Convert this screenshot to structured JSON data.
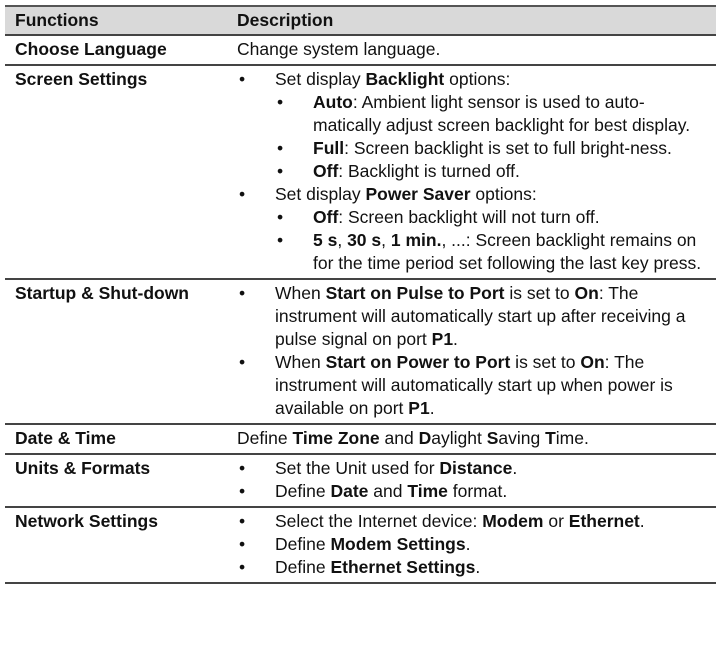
{
  "table": {
    "headers": [
      "Functions",
      "Description"
    ],
    "rows": [
      {
        "function": "Choose Language",
        "plain": [
          {
            "t": "Change system language."
          }
        ]
      },
      {
        "function": "Screen Settings",
        "items": [
          {
            "segs": [
              {
                "t": "Set display "
              },
              {
                "t": "Backlight",
                "b": true
              },
              {
                "t": " options:"
              }
            ],
            "sub": [
              [
                {
                  "t": "Auto",
                  "b": true
                },
                {
                  "t": ": Ambient light sensor is used to auto-matically adjust screen backlight for best display."
                }
              ],
              [
                {
                  "t": "Full",
                  "b": true
                },
                {
                  "t": ": Screen backlight is set to full bright-ness."
                }
              ],
              [
                {
                  "t": "Off",
                  "b": true
                },
                {
                  "t": ": Backlight is turned off."
                }
              ]
            ]
          },
          {
            "segs": [
              {
                "t": "Set display "
              },
              {
                "t": "Power Saver",
                "b": true
              },
              {
                "t": " options:"
              }
            ],
            "sub": [
              [
                {
                  "t": "Off",
                  "b": true
                },
                {
                  "t": ": Screen backlight will not turn off."
                }
              ],
              [
                {
                  "t": "5 s",
                  "b": true
                },
                {
                  "t": ", "
                },
                {
                  "t": "30 s",
                  "b": true
                },
                {
                  "t": ", "
                },
                {
                  "t": "1 min.",
                  "b": true
                },
                {
                  "t": ", ...: Screen backlight remains on for the time period set following the last key press."
                }
              ]
            ]
          }
        ]
      },
      {
        "function": "Startup & Shut-down",
        "items": [
          {
            "segs": [
              {
                "t": "When "
              },
              {
                "t": "Start on Pulse to Port",
                "b": true
              },
              {
                "t": " is set to "
              },
              {
                "t": "On",
                "b": true
              },
              {
                "t": ": The instrument will automatically start up after receiving a pulse signal on port "
              },
              {
                "t": "P1",
                "b": true
              },
              {
                "t": "."
              }
            ]
          },
          {
            "segs": [
              {
                "t": "When "
              },
              {
                "t": "Start on Power to Port",
                "b": true
              },
              {
                "t": " is set to "
              },
              {
                "t": "On",
                "b": true
              },
              {
                "t": ": The instrument will automatically start up when power is available on port "
              },
              {
                "t": "P1",
                "b": true
              },
              {
                "t": "."
              }
            ]
          }
        ]
      },
      {
        "function": "Date & Time",
        "plain": [
          {
            "t": "Define "
          },
          {
            "t": "Time Zone",
            "b": true
          },
          {
            "t": " and "
          },
          {
            "t": "D",
            "b": true
          },
          {
            "t": "aylight "
          },
          {
            "t": "S",
            "b": true
          },
          {
            "t": "aving "
          },
          {
            "t": "T",
            "b": true
          },
          {
            "t": "ime."
          }
        ]
      },
      {
        "function": "Units & Formats",
        "items": [
          {
            "segs": [
              {
                "t": "Set the Unit used for "
              },
              {
                "t": "Distance",
                "b": true
              },
              {
                "t": "."
              }
            ]
          },
          {
            "segs": [
              {
                "t": "Define "
              },
              {
                "t": "Date",
                "b": true
              },
              {
                "t": " and "
              },
              {
                "t": "Time",
                "b": true
              },
              {
                "t": " format."
              }
            ]
          }
        ]
      },
      {
        "function": "Network Settings",
        "items": [
          {
            "segs": [
              {
                "t": "Select the Internet device: "
              },
              {
                "t": "Modem",
                "b": true
              },
              {
                "t": " or "
              },
              {
                "t": "Ethernet",
                "b": true
              },
              {
                "t": "."
              }
            ]
          },
          {
            "segs": [
              {
                "t": "Define "
              },
              {
                "t": "Modem Settings",
                "b": true
              },
              {
                "t": "."
              }
            ]
          },
          {
            "segs": [
              {
                "t": "Define "
              },
              {
                "t": "Ethernet Settings",
                "b": true
              },
              {
                "t": "."
              }
            ]
          }
        ]
      }
    ]
  }
}
